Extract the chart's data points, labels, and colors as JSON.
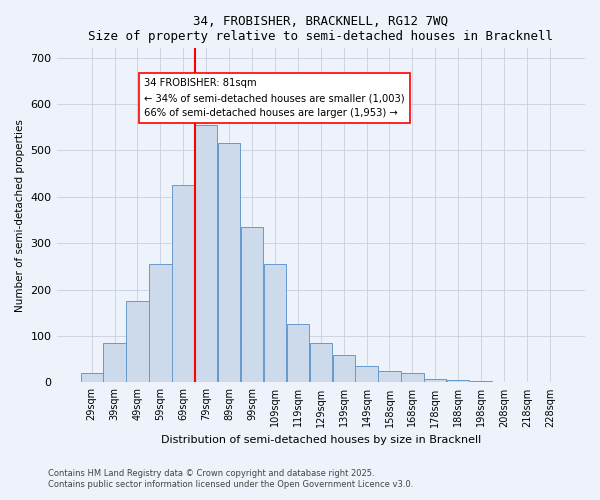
{
  "title1": "34, FROBISHER, BRACKNELL, RG12 7WQ",
  "title2": "Size of property relative to semi-detached houses in Bracknell",
  "xlabel": "Distribution of semi-detached houses by size in Bracknell",
  "ylabel": "Number of semi-detached properties",
  "bar_labels": [
    "29sqm",
    "39sqm",
    "49sqm",
    "59sqm",
    "69sqm",
    "79sqm",
    "89sqm",
    "99sqm",
    "109sqm",
    "119sqm",
    "129sqm",
    "139sqm",
    "149sqm",
    "158sqm",
    "168sqm",
    "178sqm",
    "188sqm",
    "198sqm",
    "208sqm",
    "218sqm",
    "228sqm"
  ],
  "bar_heights": [
    20,
    85,
    175,
    255,
    425,
    555,
    515,
    335,
    255,
    125,
    85,
    60,
    35,
    25,
    20,
    8,
    5,
    3,
    2,
    1,
    1
  ],
  "bar_color": "#ccdaeb",
  "bar_edge_color": "#6699cc",
  "vline_color": "red",
  "annotation_text": "34 FROBISHER: 81sqm\n← 34% of semi-detached houses are smaller (1,003)\n66% of semi-detached houses are larger (1,953) →",
  "annotation_box_color": "white",
  "annotation_box_edge": "red",
  "ylim": [
    0,
    720
  ],
  "yticks": [
    0,
    100,
    200,
    300,
    400,
    500,
    600,
    700
  ],
  "footer1": "Contains HM Land Registry data © Crown copyright and database right 2025.",
  "footer2": "Contains public sector information licensed under the Open Government Licence v3.0.",
  "bg_color": "#eef2fa",
  "grid_color": "#c8cfe0"
}
